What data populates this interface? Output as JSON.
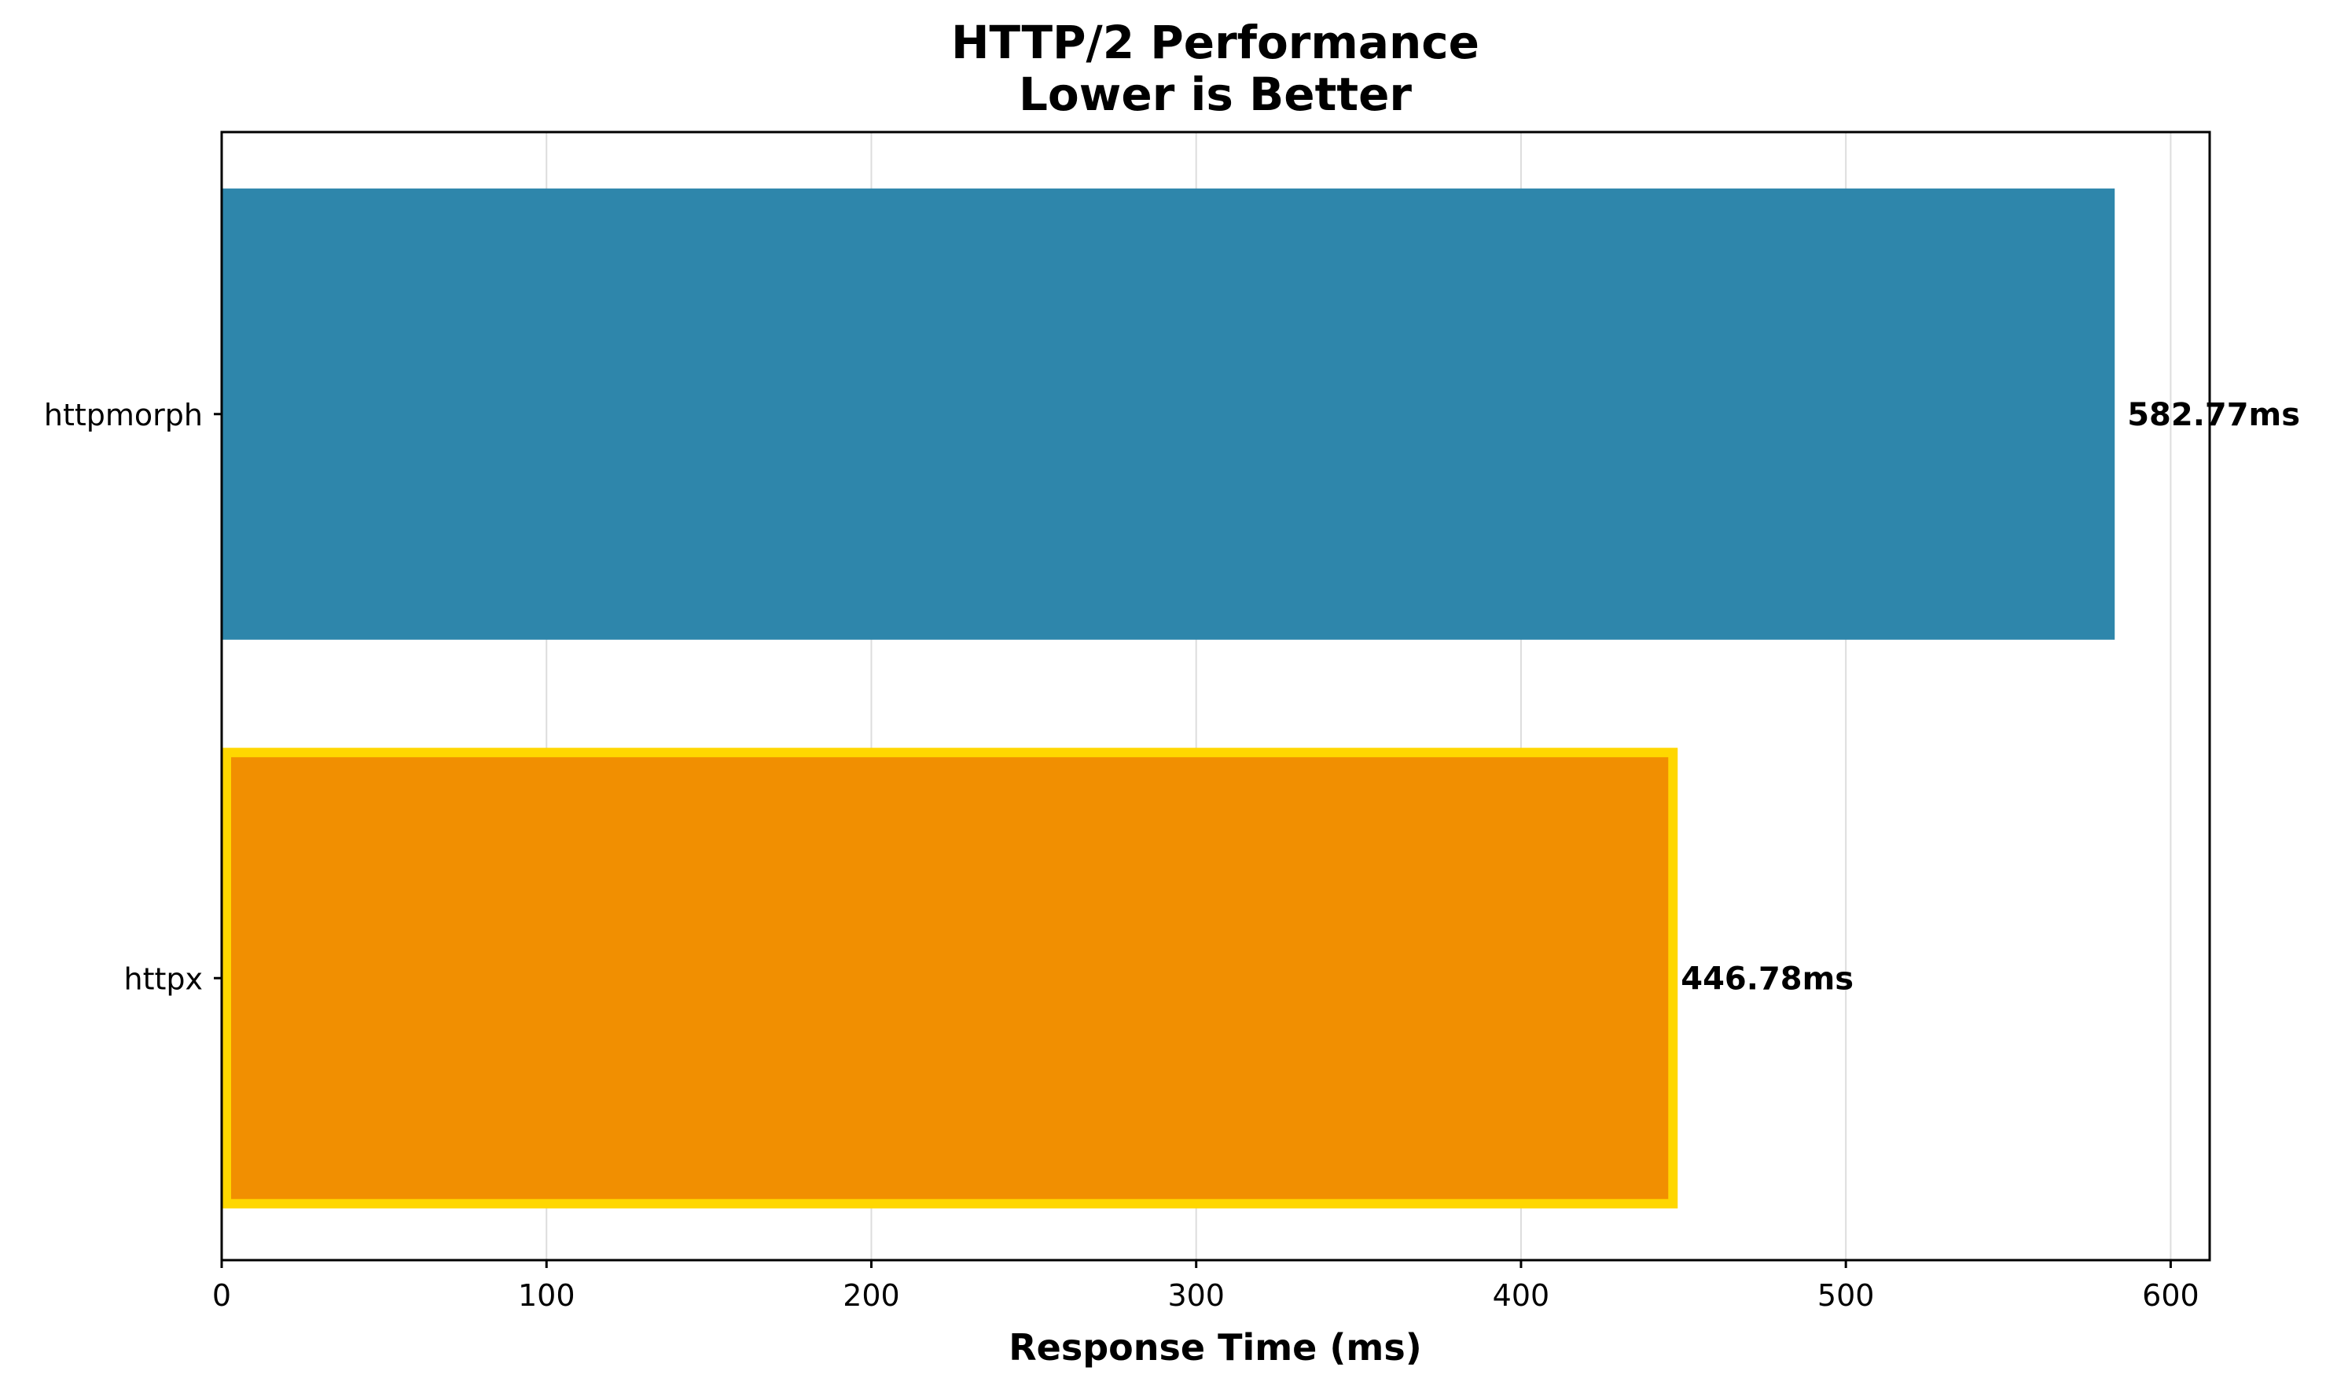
{
  "chart_data": {
    "type": "bar",
    "orientation": "horizontal",
    "title": "HTTP/2 Performance",
    "subtitle": "Lower is Better",
    "xlabel": "Response Time (ms)",
    "ylabel": "",
    "categories": [
      "httpmorph",
      "httpx"
    ],
    "values": [
      582.77,
      446.78
    ],
    "value_labels": [
      "582.77ms",
      "446.78ms"
    ],
    "colors": [
      "#2e86ab",
      "#f18f01"
    ],
    "highlight": {
      "category": "httpx",
      "edge_color": "#ffd700"
    },
    "xlim": [
      0,
      612
    ],
    "xticks": [
      0,
      100,
      200,
      300,
      400,
      500,
      600
    ],
    "xtick_labels": [
      "0",
      "100",
      "200",
      "300",
      "400",
      "500",
      "600"
    ],
    "grid": {
      "x": true,
      "y": false,
      "color": "#dddddd"
    },
    "legend": "none"
  }
}
